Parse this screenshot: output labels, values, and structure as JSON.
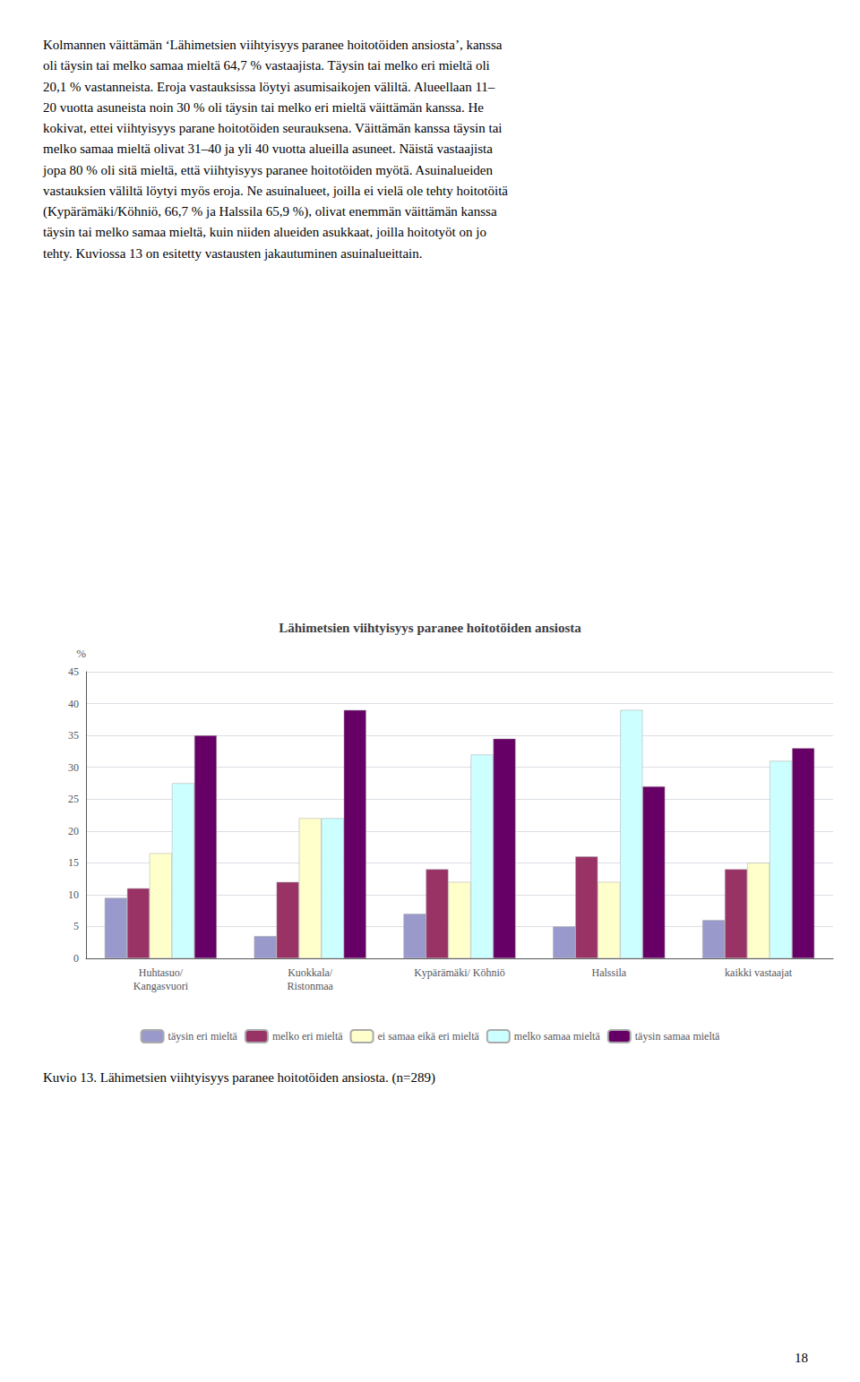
{
  "body_text": [
    "Kolmannen väittämän ‘Lähimetsien viihtyisyys paranee hoitotöiden ansiosta’, kanssa",
    "oli täysin tai melko samaa mieltä 64,7 % vastaajista. Täysin tai melko eri mieltä oli",
    "20,1 % vastanneista. Eroja vastauksissa löytyi asumisaikojen väliltä. Alueellaan 11–",
    "20 vuotta asuneista noin 30 % oli täysin tai melko eri mieltä väittämän kanssa. He",
    "kokivat, ettei viihtyisyys parane hoitotöiden seurauksena. Väittämän kanssa täysin tai",
    "melko samaa mieltä olivat 31–40 ja yli 40 vuotta alueilla asuneet. Näistä vastaajista",
    "jopa 80 % oli sitä mieltä, että viihtyisyys paranee hoitotöiden myötä. Asuinalueiden",
    "vastauksien väliltä löytyi myös eroja. Ne asuinalueet, joilla ei vielä ole tehty hoitotöitä",
    "(Kypärämäki/Köhniö, 66,7 % ja Halssila 65,9 %), olivat enemmän väittämän kanssa",
    "täysin tai melko samaa mieltä, kuin niiden alueiden asukkaat, joilla hoitotyöt on jo",
    "tehty. Kuviossa 13 on esitetty vastausten jakautuminen asuinalueittain."
  ],
  "caption": "Kuvio 13. Lähimetsien viihtyisyys paranee hoitotöiden ansiosta. (n=289)",
  "page_number": "18",
  "chart_data": {
    "type": "bar",
    "title": "Lähimetsien viihtyisyys paranee hoitotöiden ansiosta",
    "ylabel": "%",
    "categories": [
      "Huhtasuo/\nKangasvuori",
      "Kuokkala/\nRistonmaa",
      "Kypärämäki/ Köhniö",
      "Halssila",
      "kaikki vastaajat"
    ],
    "series": [
      {
        "name": "täysin eri mieltä",
        "color": "#9999cc",
        "values": [
          9.5,
          3.5,
          7.0,
          5.0,
          6.0
        ]
      },
      {
        "name": "melko eri mieltä",
        "color": "#993366",
        "values": [
          11.0,
          12.0,
          14.0,
          16.0,
          14.0
        ]
      },
      {
        "name": "ei samaa eikä eri mieltä",
        "color": "#ffffcc",
        "values": [
          16.5,
          22.0,
          12.0,
          12.0,
          15.0
        ]
      },
      {
        "name": "melko samaa mieltä",
        "color": "#ccffff",
        "values": [
          27.5,
          22.0,
          32.0,
          39.0,
          31.0
        ]
      },
      {
        "name": "täysin samaa mieltä",
        "color": "#660066",
        "values": [
          35.0,
          39.0,
          34.5,
          27.0,
          33.0
        ]
      }
    ],
    "ylim": [
      0,
      45
    ],
    "yticks": [
      0,
      5,
      10,
      15,
      20,
      25,
      30,
      35,
      40,
      45
    ],
    "grid": true,
    "legend": "bottom"
  }
}
